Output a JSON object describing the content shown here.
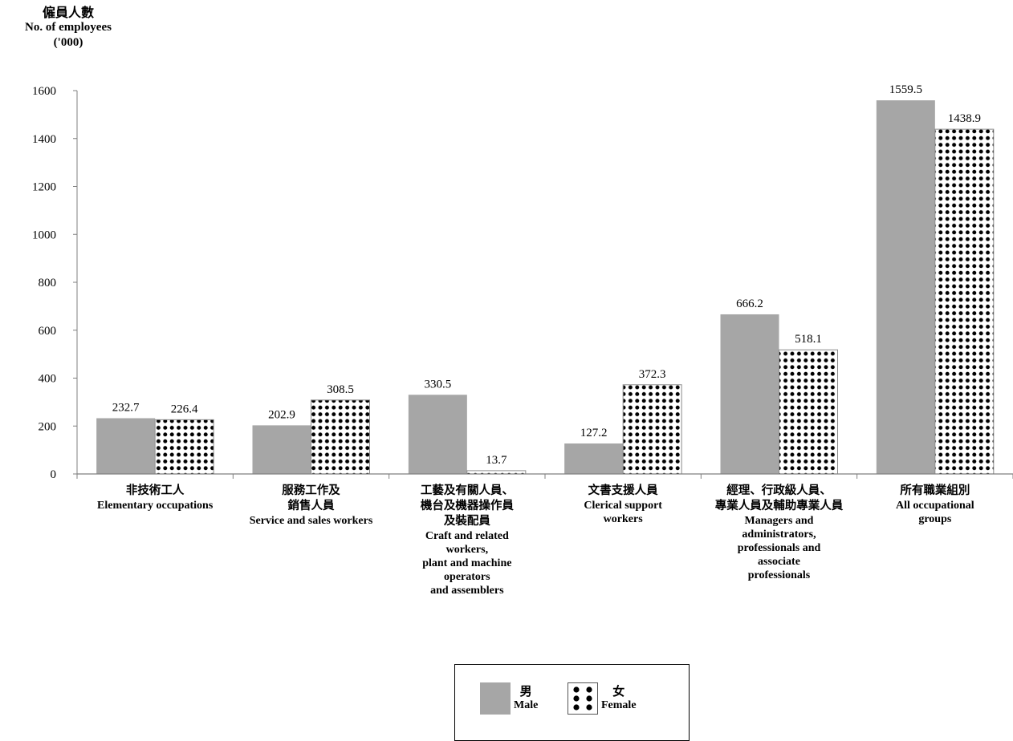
{
  "chart_data": {
    "type": "bar",
    "ylabel_zh": "僱員人數",
    "ylabel_en": "No. of employees",
    "ylabel_unit": "('000)",
    "ylim": [
      0,
      1600
    ],
    "yticks": [
      0,
      200,
      400,
      600,
      800,
      1000,
      1200,
      1400,
      1600
    ],
    "grid": false,
    "legend_position": "bottom",
    "categories": [
      {
        "zh": "非技術工人",
        "en": "Elementary occupations"
      },
      {
        "zh": "服務工作及\n銷售人員",
        "en": "Service and sales workers"
      },
      {
        "zh": "工藝及有關人員、\n機台及機器操作員\n及裝配員",
        "en": "Craft and related\nworkers,\nplant and machine\noperators\nand assemblers"
      },
      {
        "zh": "文書支援人員",
        "en": "Clerical support\nworkers"
      },
      {
        "zh": "經理、行政級人員、\n專業人員及輔助專業人員",
        "en": "Managers and\nadministrators,\nprofessionals and\nassociate\nprofessionals"
      },
      {
        "zh": "所有職業組別",
        "en": "All occupational\ngroups"
      }
    ],
    "series": [
      {
        "name": "Male",
        "name_zh": "男",
        "color": "#a6a6a6",
        "pattern": "solid",
        "values": [
          232.7,
          202.9,
          330.5,
          127.2,
          666.2,
          1559.5
        ]
      },
      {
        "name": "Female",
        "name_zh": "女",
        "color": "#000000",
        "pattern": "dots",
        "values": [
          226.4,
          308.5,
          13.7,
          372.3,
          518.1,
          1438.9
        ]
      }
    ],
    "data_labels": [
      [
        "232.7",
        "202.9",
        "330.5",
        "127.2",
        "666.2",
        "1559.5"
      ],
      [
        "226.4",
        "308.5",
        "13.7",
        "372.3",
        "518.1",
        "1438.9"
      ]
    ]
  },
  "legend": {
    "male_zh": "男",
    "male_en": "Male",
    "female_zh": "女",
    "female_en": "Female"
  }
}
